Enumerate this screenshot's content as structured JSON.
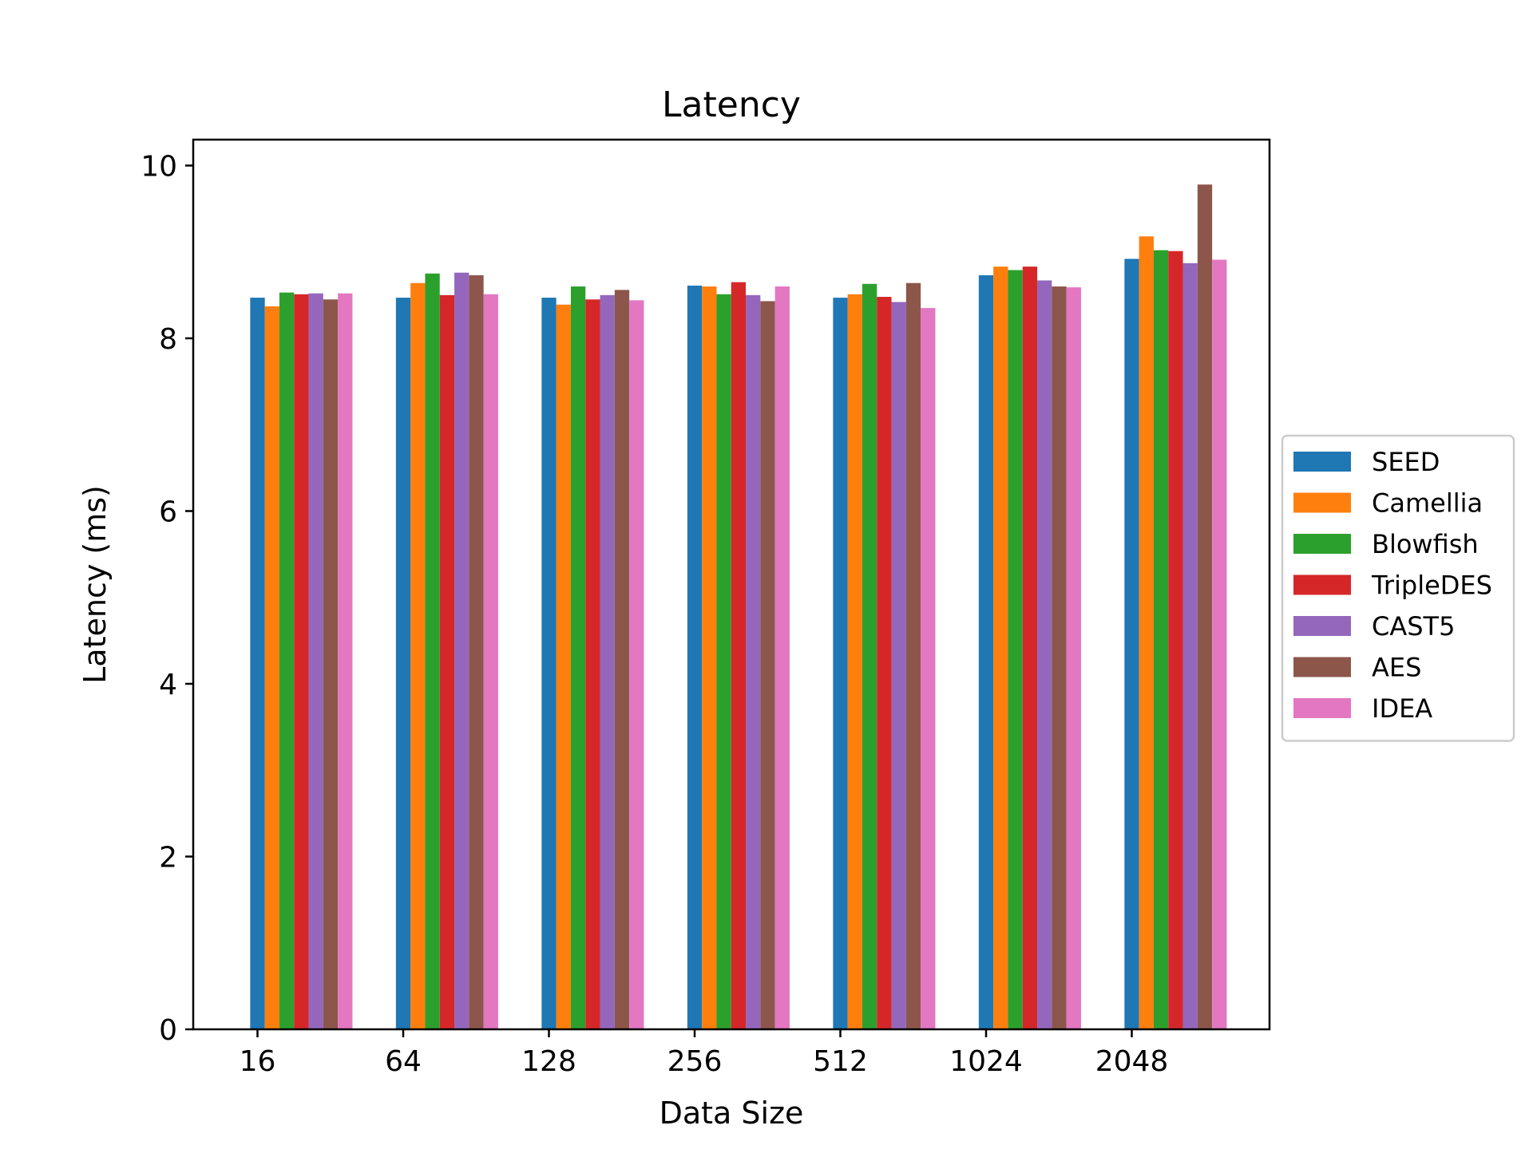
{
  "chart_data": {
    "type": "bar",
    "title": "Latency",
    "xlabel": "Data Size",
    "ylabel": "Latency (ms)",
    "categories": [
      "16",
      "64",
      "128",
      "256",
      "512",
      "1024",
      "2048"
    ],
    "ylim": [
      0,
      10.3
    ],
    "yticks": [
      "0",
      "2",
      "4",
      "6",
      "8",
      "10"
    ],
    "grid": false,
    "legend_position": "center-right outside",
    "series": [
      {
        "name": "SEED",
        "color": "#1f77b4",
        "values": [
          8.47,
          8.47,
          8.47,
          8.61,
          8.47,
          8.73,
          8.92
        ]
      },
      {
        "name": "Camellia",
        "color": "#ff7f0e",
        "values": [
          8.37,
          8.64,
          8.39,
          8.6,
          8.51,
          8.83,
          9.18
        ]
      },
      {
        "name": "Blowfish",
        "color": "#2ca02c",
        "values": [
          8.53,
          8.75,
          8.6,
          8.51,
          8.63,
          8.79,
          9.02
        ]
      },
      {
        "name": "TripleDES",
        "color": "#d62728",
        "values": [
          8.51,
          8.5,
          8.45,
          8.65,
          8.48,
          8.83,
          9.01
        ]
      },
      {
        "name": "CAST5",
        "color": "#9467bd",
        "values": [
          8.52,
          8.76,
          8.5,
          8.5,
          8.42,
          8.67,
          8.87
        ]
      },
      {
        "name": "AES",
        "color": "#8c564b",
        "values": [
          8.45,
          8.73,
          8.56,
          8.43,
          8.64,
          8.6,
          9.78
        ]
      },
      {
        "name": "IDEA",
        "color": "#e377c2",
        "values": [
          8.52,
          8.51,
          8.44,
          8.6,
          8.35,
          8.59,
          8.91
        ]
      }
    ]
  }
}
